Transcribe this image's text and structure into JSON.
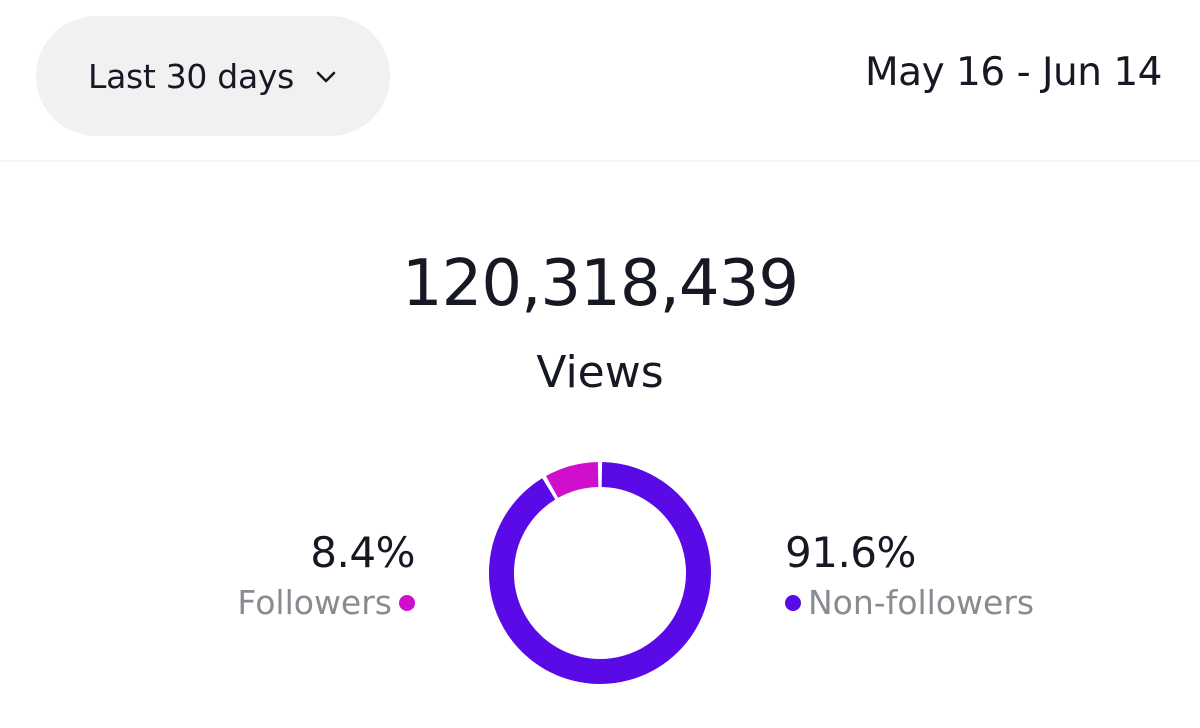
{
  "filter": {
    "range_label": "Last 30 days",
    "dropdown_icon": "chevron-down-icon"
  },
  "date_range": "May 16 - Jun 14",
  "summary": {
    "total": "120,318,439",
    "label": "Views"
  },
  "breakdown": {
    "followers": {
      "value": "8.4%",
      "label": "Followers",
      "fraction": 0.084,
      "color": "#d00fcc"
    },
    "non_followers": {
      "value": "91.6%",
      "label": "Non-followers",
      "fraction": 0.916,
      "color": "#5a0ae6"
    }
  },
  "chart_data": {
    "type": "pie",
    "categories": [
      "Followers",
      "Non-followers"
    ],
    "values": [
      8.4,
      91.6
    ],
    "unit": "%"
  }
}
